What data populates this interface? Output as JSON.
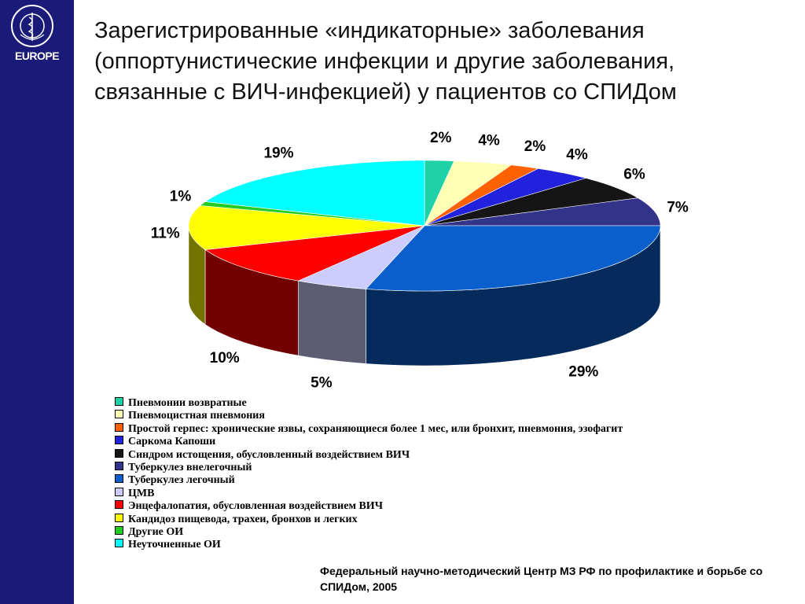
{
  "logo": {
    "text": "EUROPE",
    "emblem_text": "WORLD HEALTH ORGANIZATION"
  },
  "title": "Зарегистрированные «индикаторные» заболевания (оппортунистические инфекции и другие заболевания, связанные с ВИЧ-инфекцией) у пациентов со СПИДом",
  "source_note": "Федеральный научно-методический Центр МЗ РФ по профилактике и борьбе со СПИДом, 2005",
  "colors": {
    "sidebar": "#1a1b78",
    "title_text": "#111111"
  },
  "chart_data": {
    "type": "pie",
    "style": "3d",
    "legend_placement": "bottom-left",
    "unit": "%",
    "slices": [
      {
        "label": "Пневмонии возвратные",
        "value": 2,
        "value_label": "2%",
        "color": "#1fd1a6"
      },
      {
        "label": "Пневмоцистная пневмония",
        "value": 4,
        "value_label": "4%",
        "color": "#ffffb4"
      },
      {
        "label": "Простой герпес: хронические язвы, сохраняющиеся более 1 мес, или бронхит, пневмония, эзофагит",
        "value": 2,
        "value_label": "2%",
        "color": "#ff6000"
      },
      {
        "label": "Саркома Капоши",
        "value": 4,
        "value_label": "4%",
        "color": "#2222dd"
      },
      {
        "label": "Синдром истощения, обусловленный воздействием ВИЧ",
        "value": 6,
        "value_label": "6%",
        "color": "#151515"
      },
      {
        "label": "Туберкулез внелегочный",
        "value": 7,
        "value_label": "7%",
        "color": "#33338a"
      },
      {
        "label": "Туберкулез легочный",
        "value": 29,
        "value_label": "29%",
        "color": "#0a5fcc"
      },
      {
        "label": "ЦМВ",
        "value": 5,
        "value_label": "5%",
        "color": "#ccccff"
      },
      {
        "label": "Энцефалопатия, обусловленная воздействием ВИЧ",
        "value": 10,
        "value_label": "10%",
        "color": "#ff0000"
      },
      {
        "label": "Кандидоз пищевода, трахеи, бронхов и легких",
        "value": 11,
        "value_label": "11%",
        "color": "#ffff00"
      },
      {
        "label": "Другие ОИ",
        "value": 1,
        "value_label": "1%",
        "color": "#22cc22"
      },
      {
        "label": "Неуточненные ОИ",
        "value": 19,
        "value_label": "19%",
        "color": "#00ffff"
      }
    ]
  }
}
